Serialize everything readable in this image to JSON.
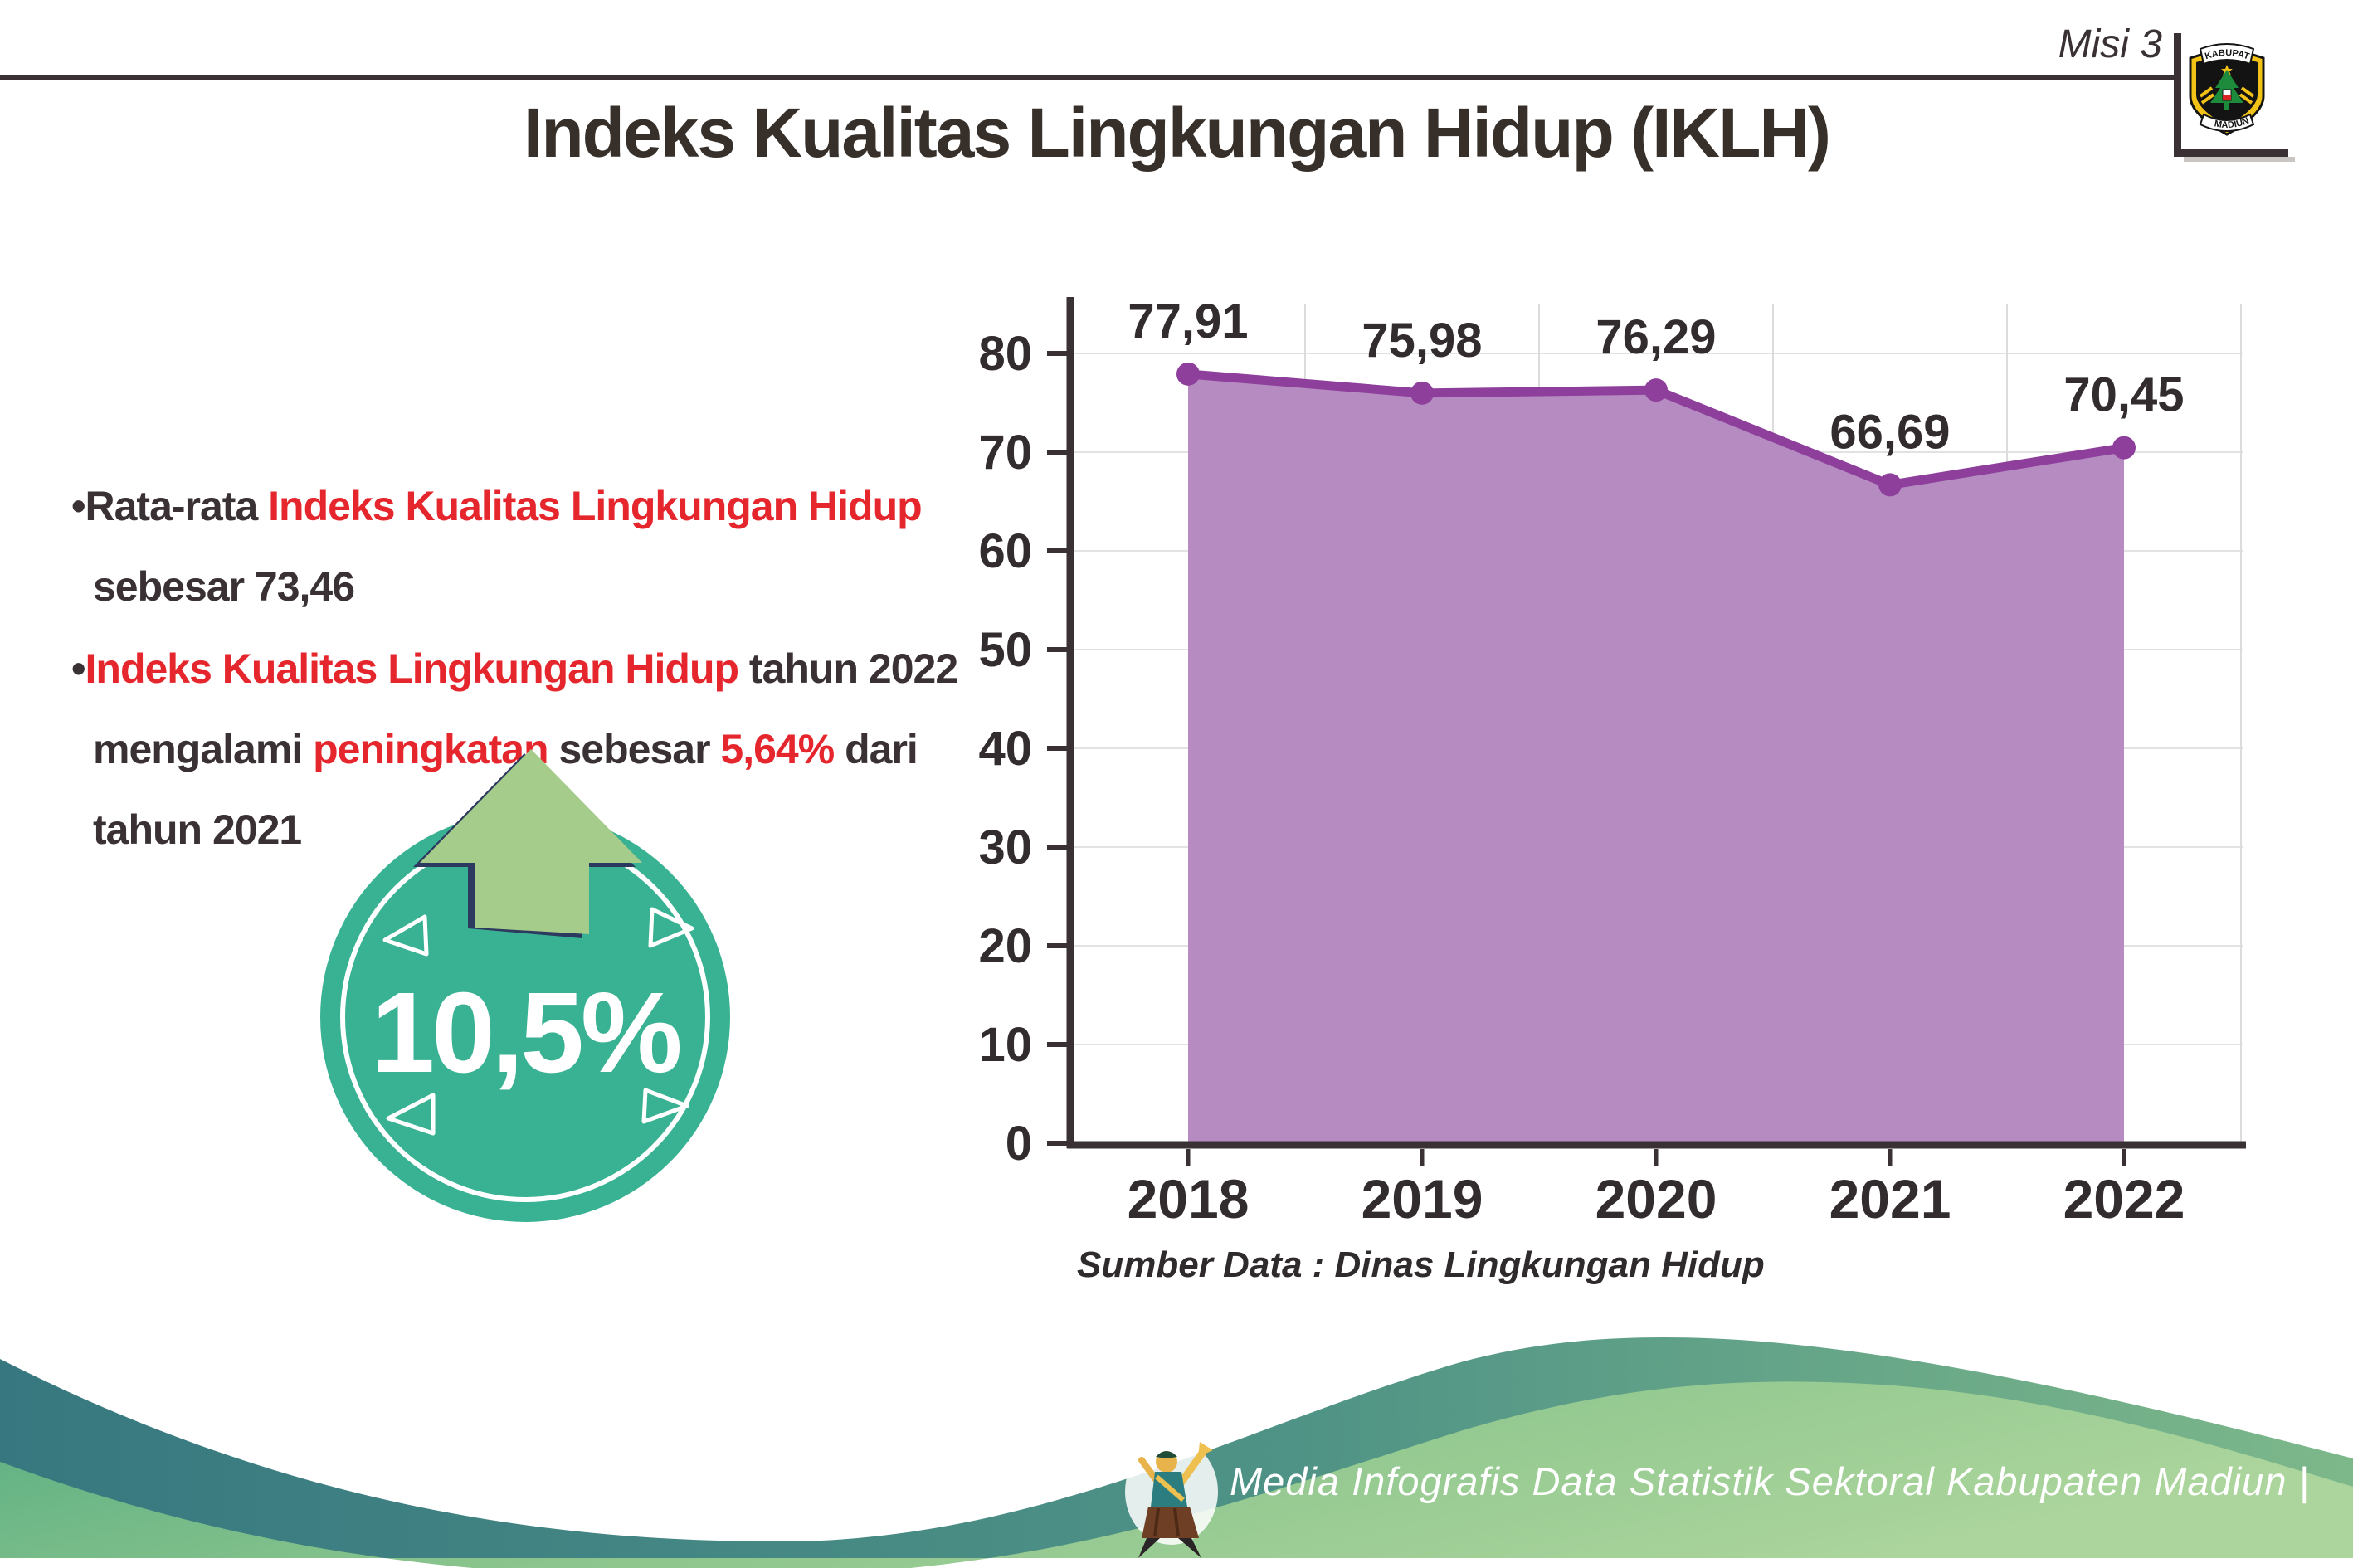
{
  "header": {
    "misi_label": "Misi 3",
    "title": "Indeks Kualitas Lingkungan Hidup (IKLH)",
    "logo_top": "KABUPATEN",
    "logo_bottom": "MADIUN"
  },
  "bullets": [
    {
      "segments": [
        {
          "text": "•",
          "style": "dark"
        },
        {
          "text": "Rata-rata ",
          "style": "dark"
        },
        {
          "text": "Indeks Kualitas Lingkungan Hidup",
          "style": "red"
        },
        {
          "text": " sebesar 73,46",
          "style": "dark"
        }
      ]
    },
    {
      "segments": [
        {
          "text": "•",
          "style": "dark"
        },
        {
          "text": "Indeks Kualitas Lingkungan Hidup",
          "style": "red"
        },
        {
          "text": " tahun 2022 mengalami ",
          "style": "dark"
        },
        {
          "text": "peningkatan",
          "style": "red"
        },
        {
          "text": " sebesar ",
          "style": "dark"
        },
        {
          "text": "5,64%",
          "style": "red"
        },
        {
          "text": " dari tahun 2021",
          "style": "dark"
        }
      ]
    }
  ],
  "badge": {
    "value": "10,5%"
  },
  "chart_data": {
    "type": "area",
    "title": "",
    "categories": [
      "2018",
      "2019",
      "2020",
      "2021",
      "2022"
    ],
    "series": [
      {
        "name": "IKLH",
        "values": [
          77.91,
          75.98,
          76.29,
          66.69,
          70.45
        ]
      }
    ],
    "point_labels": [
      "77,91",
      "75,98",
      "76,29",
      "66,69",
      "70,45"
    ],
    "y_ticks": [
      0,
      10,
      20,
      30,
      40,
      50,
      60,
      70,
      80
    ],
    "ylim": [
      0,
      85
    ],
    "grid": true,
    "legend": "none",
    "source_note": "Sumber Data : Dinas Lingkungan Hidup",
    "colors": {
      "line": "#8d3f9b",
      "fill": "#b58bc1",
      "marker": "#8d3f9b",
      "axis": "#3a3134",
      "grid_h": "#e2e2e2",
      "grid_v": "#dcdcdc",
      "label": "#332c2e"
    }
  },
  "footer": {
    "credit": "Media Infografis Data Statistik Sektoral Kabupaten Madiun |"
  },
  "colors": {
    "text_dark": "#3a3134",
    "accent_red": "#e5262d",
    "badge_teal": "#38b292",
    "arrow_green": "#a6cc8b",
    "arrow_outline_navy": "#2d3a5f",
    "footer_teal": "#377880",
    "footer_green": "#a9d49b"
  }
}
